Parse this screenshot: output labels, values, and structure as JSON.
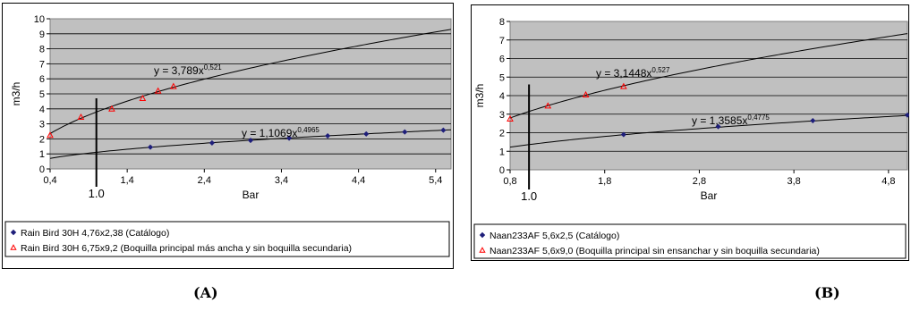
{
  "chart_data": [
    {
      "type": "scatter",
      "title": "",
      "xlabel": "Bar",
      "ylabel": "m3/h",
      "xlim": [
        0.4,
        5.6
      ],
      "ylim": [
        0,
        10
      ],
      "xticks": [
        "0,4",
        "1,4",
        "2,4",
        "3,4",
        "4,4",
        "5,4"
      ],
      "yticks": [
        "0",
        "1",
        "2",
        "3",
        "4",
        "5",
        "6",
        "7",
        "8",
        "9",
        "10"
      ],
      "marker_label": "1.0",
      "grid": true,
      "legend": "bottom",
      "series": [
        {
          "name": "Rain Bird 30H 4,76x2,38 (Catálogo)",
          "marker": "diamond",
          "color": "#1f1f7a",
          "x": [
            1.7,
            2.5,
            3.0,
            3.5,
            4.0,
            4.5,
            5.0,
            5.5
          ],
          "y": [
            1.45,
            1.73,
            1.9,
            2.05,
            2.2,
            2.33,
            2.46,
            2.58
          ],
          "trend": {
            "a": 1.1069,
            "b": 0.4965,
            "label": "y = 1,1069x",
            "exp": "0,4965"
          }
        },
        {
          "name": "Rain Bird 30H 6,75x9,2 (Boquilla principal más ancha y sin boquilla secundaria)",
          "marker": "triangle",
          "color": "#ff0000",
          "x": [
            0.4,
            0.8,
            1.2,
            1.6,
            1.8,
            2.0
          ],
          "y": [
            2.25,
            3.45,
            4.0,
            4.7,
            5.2,
            5.5
          ],
          "trend": {
            "a": 3.789,
            "b": 0.521,
            "label": "y = 3,789x",
            "exp": "0,521"
          }
        }
      ]
    },
    {
      "type": "scatter",
      "title": "",
      "xlabel": "Bar",
      "ylabel": "m3/h",
      "xlim": [
        0.8,
        5.0
      ],
      "ylim": [
        0,
        8
      ],
      "xticks": [
        "0,8",
        "1,8",
        "2,8",
        "3,8",
        "4,8"
      ],
      "yticks": [
        "0",
        "1",
        "2",
        "3",
        "4",
        "5",
        "6",
        "7",
        "8"
      ],
      "marker_label": "1.0",
      "grid": true,
      "legend": "bottom",
      "series": [
        {
          "name": "Naan233AF 5,6x2,5 (Catálogo)",
          "marker": "diamond",
          "color": "#1f1f7a",
          "x": [
            2.0,
            3.0,
            4.0,
            5.0
          ],
          "y": [
            1.9,
            2.33,
            2.65,
            2.95
          ],
          "trend": {
            "a": 1.3585,
            "b": 0.4775,
            "label": "y = 1,3585x",
            "exp": "0,4775"
          }
        },
        {
          "name": "Naan233AF 5,6x9,0 (Boquilla principal sin ensanchar y sin boquilla secundaria)",
          "marker": "triangle",
          "color": "#ff0000",
          "x": [
            0.8,
            1.2,
            1.6,
            2.0
          ],
          "y": [
            2.75,
            3.45,
            4.05,
            4.5
          ],
          "trend": {
            "a": 3.1448,
            "b": 0.527,
            "label": "y = 3,1448x",
            "exp": "0,527"
          }
        }
      ]
    }
  ],
  "captions": [
    "(A)",
    "(B)"
  ]
}
